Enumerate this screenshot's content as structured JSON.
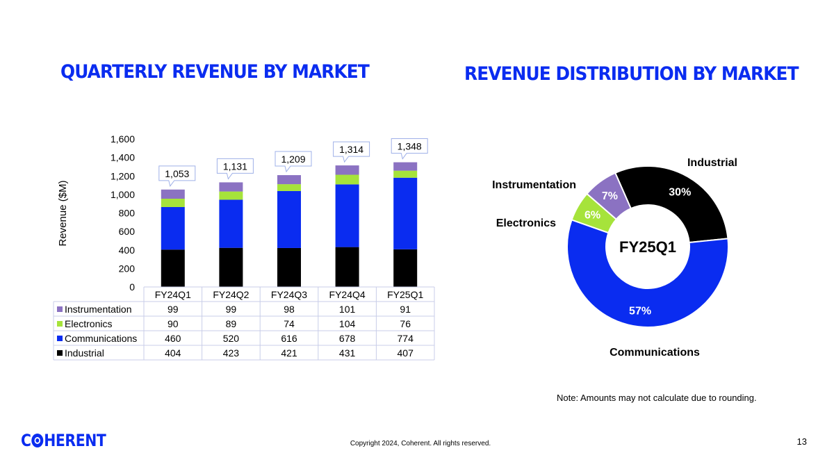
{
  "titles": {
    "bar": "QUARTERLY REVENUE BY MARKET",
    "donut": "REVENUE DISTRIBUTION BY MARKET"
  },
  "colors": {
    "Instrumentation": "#8b72c2",
    "Electronics": "#a6e33b",
    "Communications": "#0a2cf0",
    "Industrial": "#000000",
    "brand": "#0a2cf0"
  },
  "chart_data": [
    {
      "type": "bar",
      "stacked": true,
      "title": "QUARTERLY REVENUE BY MARKET",
      "ylabel": "Revenue ($M)",
      "ylim": [
        0,
        1600
      ],
      "yticks": [
        "0",
        "200",
        "400",
        "600",
        "800",
        "1,000",
        "1,200",
        "1,400",
        "1,600"
      ],
      "categories": [
        "FY24Q1",
        "FY24Q2",
        "FY24Q3",
        "FY24Q4",
        "FY25Q1"
      ],
      "series": [
        {
          "name": "Industrial",
          "values": [
            404,
            423,
            421,
            431,
            407
          ]
        },
        {
          "name": "Communications",
          "values": [
            460,
            520,
            616,
            678,
            774
          ]
        },
        {
          "name": "Electronics",
          "values": [
            90,
            89,
            74,
            104,
            76
          ]
        },
        {
          "name": "Instrumentation",
          "values": [
            99,
            99,
            98,
            101,
            91
          ]
        }
      ],
      "table_order": [
        "Instrumentation",
        "Electronics",
        "Communications",
        "Industrial"
      ],
      "totals": [
        "1,053",
        "1,131",
        "1,209",
        "1,314",
        "1,348"
      ]
    },
    {
      "type": "pie",
      "donut": true,
      "title": "REVENUE DISTRIBUTION BY MARKET",
      "center_label": "FY25Q1",
      "slices": [
        {
          "name": "Industrial",
          "value": 30,
          "label": "30%"
        },
        {
          "name": "Communications",
          "value": 57,
          "label": "57%"
        },
        {
          "name": "Electronics",
          "value": 6,
          "label": "6%"
        },
        {
          "name": "Instrumentation",
          "value": 7,
          "label": "7%"
        }
      ]
    }
  ],
  "footer": {
    "note": "Note: Amounts may not calculate due to rounding.",
    "copyright": "Copyright 2024, Coherent. All rights reserved.",
    "page": "13",
    "logo_left": "C",
    "logo_right": "HERENT"
  }
}
